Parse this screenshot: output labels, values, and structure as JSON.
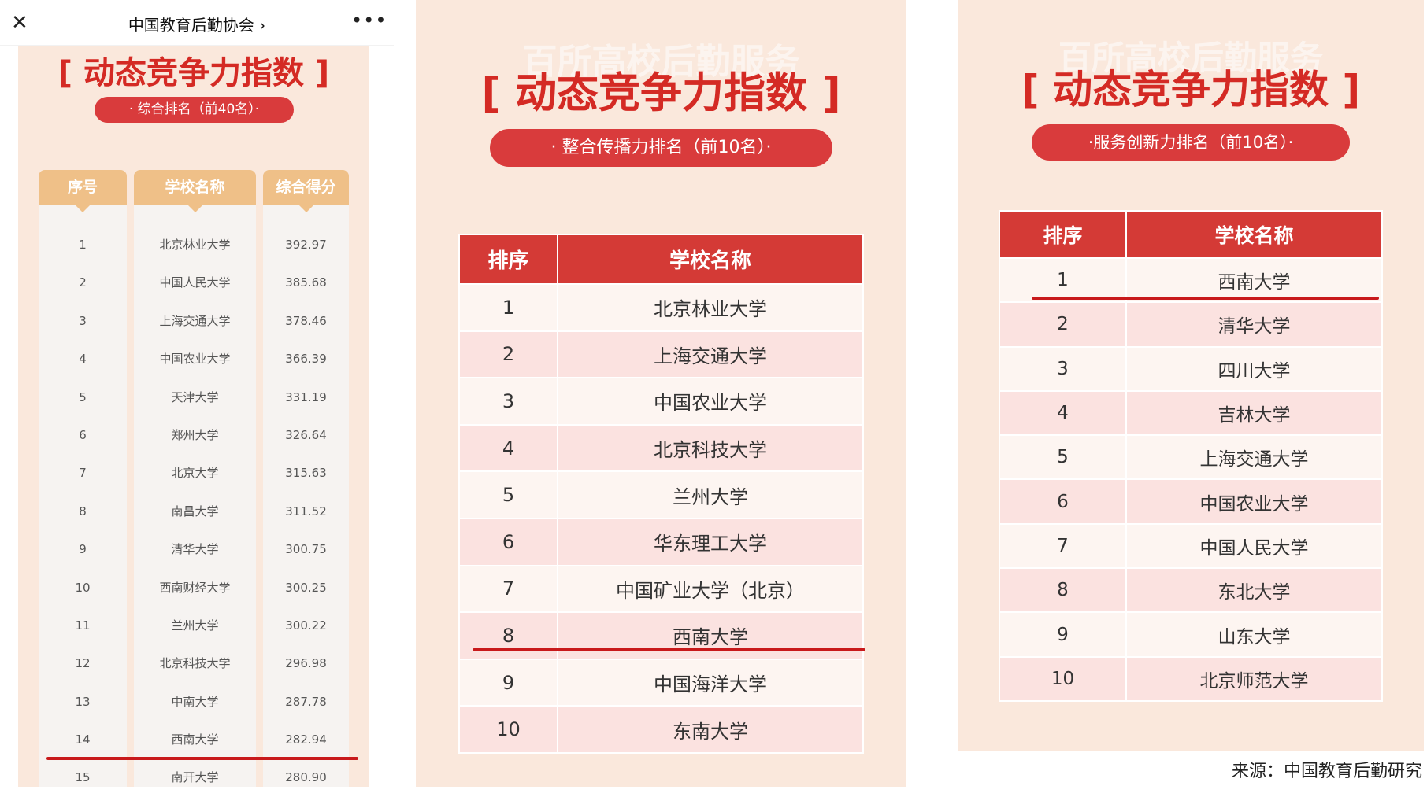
{
  "header": {
    "title": "中国教育后勤协会 ›",
    "close_icon": "close-icon",
    "more_icon": "more-icon"
  },
  "colors": {
    "accent_red": "#d42a24",
    "pill_red": "#d93b3c",
    "header_tan": "#efc088",
    "panel_bg": "#fae8dc"
  },
  "panel1": {
    "title": "[ 动态竞争力指数 ]",
    "subtitle": "· 综合排名（前40名）·",
    "columns": [
      "序号",
      "学校名称",
      "综合得分"
    ],
    "rows": [
      [
        "1",
        "北京林业大学",
        "392.97"
      ],
      [
        "2",
        "中国人民大学",
        "385.68"
      ],
      [
        "3",
        "上海交通大学",
        "378.46"
      ],
      [
        "4",
        "中国农业大学",
        "366.39"
      ],
      [
        "5",
        "天津大学",
        "331.19"
      ],
      [
        "6",
        "郑州大学",
        "326.64"
      ],
      [
        "7",
        "北京大学",
        "315.63"
      ],
      [
        "8",
        "南昌大学",
        "311.52"
      ],
      [
        "9",
        "清华大学",
        "300.75"
      ],
      [
        "10",
        "西南财经大学",
        "300.25"
      ],
      [
        "11",
        "兰州大学",
        "300.22"
      ],
      [
        "12",
        "北京科技大学",
        "296.98"
      ],
      [
        "13",
        "中南大学",
        "287.78"
      ],
      [
        "14",
        "西南大学",
        "282.94"
      ],
      [
        "15",
        "南开大学",
        "280.90"
      ]
    ]
  },
  "panel2": {
    "watermark": "百所高校后勤服务",
    "title": "[ 动态竞争力指数 ]",
    "subtitle": "· 整合传播力排名（前10名）·",
    "columns": [
      "排序",
      "学校名称"
    ],
    "rows": [
      [
        "1",
        "北京林业大学"
      ],
      [
        "2",
        "上海交通大学"
      ],
      [
        "3",
        "中国农业大学"
      ],
      [
        "4",
        "北京科技大学"
      ],
      [
        "5",
        "兰州大学"
      ],
      [
        "6",
        "华东理工大学"
      ],
      [
        "7",
        "中国矿业大学（北京）"
      ],
      [
        "8",
        "西南大学"
      ],
      [
        "9",
        "中国海洋大学"
      ],
      [
        "10",
        "东南大学"
      ]
    ]
  },
  "panel3": {
    "watermark": "百所高校后勤服务",
    "title": "[ 动态竞争力指数 ]",
    "subtitle": "·服务创新力排名（前10名）·",
    "columns": [
      "排序",
      "学校名称"
    ],
    "rows": [
      [
        "1",
        "西南大学"
      ],
      [
        "2",
        "清华大学"
      ],
      [
        "3",
        "四川大学"
      ],
      [
        "4",
        "吉林大学"
      ],
      [
        "5",
        "上海交通大学"
      ],
      [
        "6",
        "中国农业大学"
      ],
      [
        "7",
        "中国人民大学"
      ],
      [
        "8",
        "东北大学"
      ],
      [
        "9",
        "山东大学"
      ],
      [
        "10",
        "北京师范大学"
      ]
    ]
  },
  "source": "来源：中国教育后勤研究"
}
